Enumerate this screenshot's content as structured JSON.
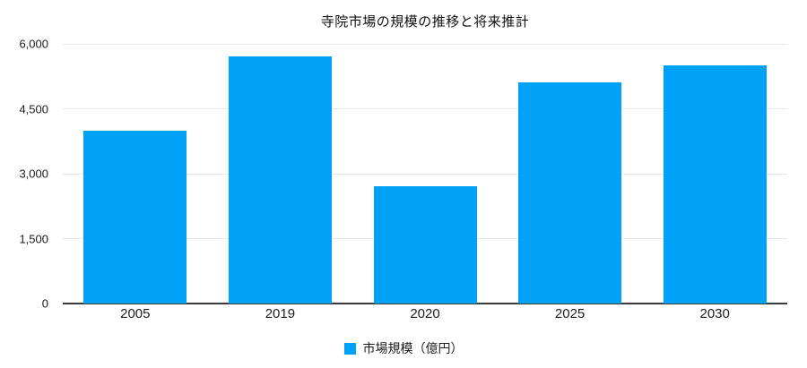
{
  "chart_data": {
    "type": "bar",
    "title": "寺院市場の規模の推移と将来推計",
    "categories": [
      "2005",
      "2019",
      "2020",
      "2025",
      "2030"
    ],
    "values": [
      4000,
      5700,
      2700,
      5100,
      5500
    ],
    "series_name": "市場規模（億円）",
    "xlabel": "",
    "ylabel": "",
    "ylim": [
      0,
      6000
    ],
    "yticks": [
      0,
      1500,
      3000,
      4500,
      6000
    ],
    "ytick_labels": [
      "0",
      "1,500",
      "3,000",
      "4,500",
      "6,000"
    ],
    "legend_position": "bottom",
    "grid": true,
    "colors": {
      "bar": "#00A2F8",
      "gridline": "#E7E7E7",
      "axis_line": "#3A3A3A",
      "text": "#1C1C1C",
      "background": "#FFFFFF"
    }
  }
}
